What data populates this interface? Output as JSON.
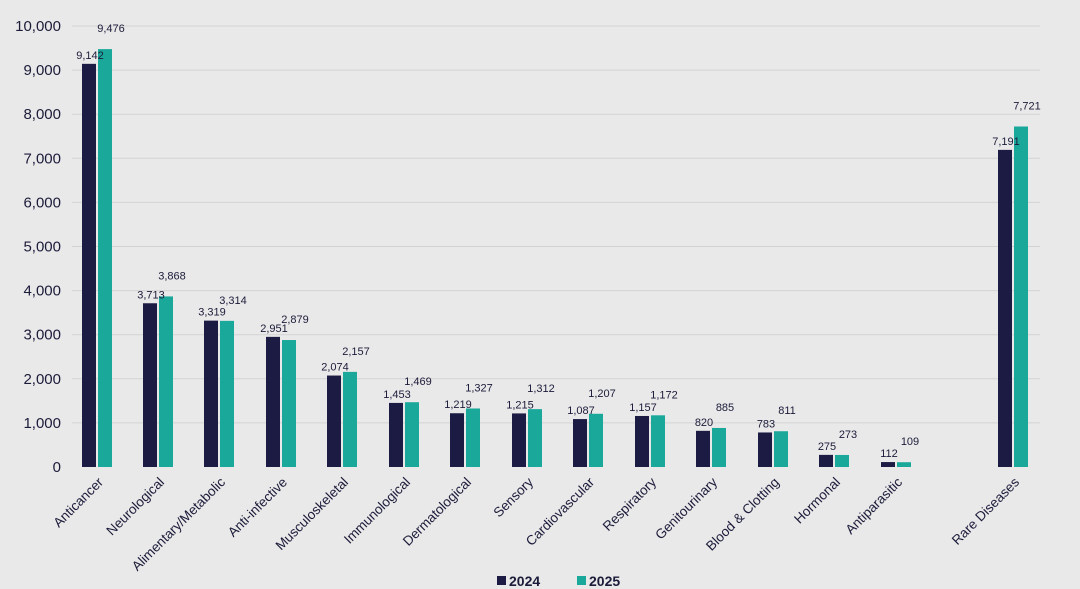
{
  "chart_data": {
    "type": "bar",
    "title": "",
    "xlabel": "",
    "ylabel": "",
    "ylim": [
      0,
      10000
    ],
    "yticks": [
      0,
      1000,
      2000,
      3000,
      4000,
      5000,
      6000,
      7000,
      8000,
      9000,
      10000
    ],
    "ytick_labels": [
      "0",
      "1,000",
      "2,000",
      "3,000",
      "4,000",
      "5,000",
      "6,000",
      "7,000",
      "8,000",
      "9,000",
      "10,000"
    ],
    "grid": true,
    "legend_position": "bottom-center",
    "categories": [
      "Anticancer",
      "Neurological",
      "Alimentary/Metabolic",
      "Anti-infective",
      "Musculoskeletal",
      "Immunological",
      "Dermatological",
      "Sensory",
      "Cardiovascular",
      "Respiratory",
      "Genitourinary",
      "Blood & Clotting",
      "Hormonal",
      "Antiparasitic",
      "Rare Diseases"
    ],
    "series": [
      {
        "name": "2024",
        "color": "#1b1b44",
        "values": [
          9142,
          3713,
          3319,
          2951,
          2074,
          1453,
          1219,
          1215,
          1087,
          1157,
          820,
          783,
          275,
          112,
          7191
        ],
        "labels": [
          "9,142",
          "3,713",
          "3,319",
          "2,951",
          "2,074",
          "1,453",
          "1,219",
          "1,215",
          "1,087",
          "1,157",
          "820",
          "783",
          "275",
          "112",
          "7,191"
        ]
      },
      {
        "name": "2025",
        "color": "#1aa89a",
        "values": [
          9476,
          3868,
          3314,
          2879,
          2157,
          1469,
          1327,
          1312,
          1207,
          1172,
          885,
          811,
          273,
          109,
          7721
        ],
        "labels": [
          "9,476",
          "3,868",
          "3,314",
          "2,879",
          "2,157",
          "1,469",
          "1,327",
          "1,312",
          "1,207",
          "1,172",
          "885",
          "811",
          "273",
          "109",
          "7,721"
        ]
      }
    ]
  }
}
